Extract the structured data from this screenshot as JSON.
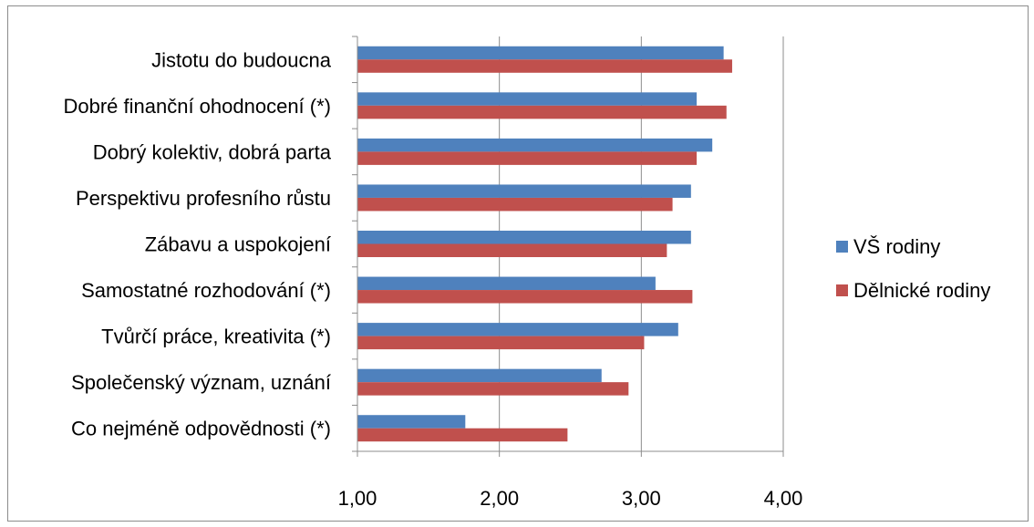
{
  "chart_data": {
    "type": "bar",
    "orientation": "horizontal",
    "categories": [
      "Jistotu do budoucna",
      "Dobré finanční ohodnocení (*)",
      "Dobrý kolektiv, dobrá parta",
      "Perspektivu profesního růstu",
      "Zábavu a uspokojení",
      "Samostatné rozhodování (*)",
      "Tvůrčí práce, kreativita (*)",
      "Společenský význam, uznání",
      "Co nejméně odpovědnosti (*)"
    ],
    "series": [
      {
        "name": "VŠ rodiny",
        "color": "#4f81bd",
        "values": [
          3.58,
          3.39,
          3.5,
          3.35,
          3.35,
          3.1,
          3.26,
          2.72,
          1.76
        ]
      },
      {
        "name": "Dělnické rodiny",
        "color": "#c0504d",
        "values": [
          3.64,
          3.6,
          3.39,
          3.22,
          3.18,
          3.36,
          3.02,
          2.91,
          2.48
        ]
      }
    ],
    "xlim": [
      1,
      4
    ],
    "xticks": [
      "1,00",
      "2,00",
      "3,00",
      "4,00"
    ],
    "grid": "vertical",
    "legend": "right",
    "title": "",
    "xlabel": "",
    "ylabel": ""
  }
}
